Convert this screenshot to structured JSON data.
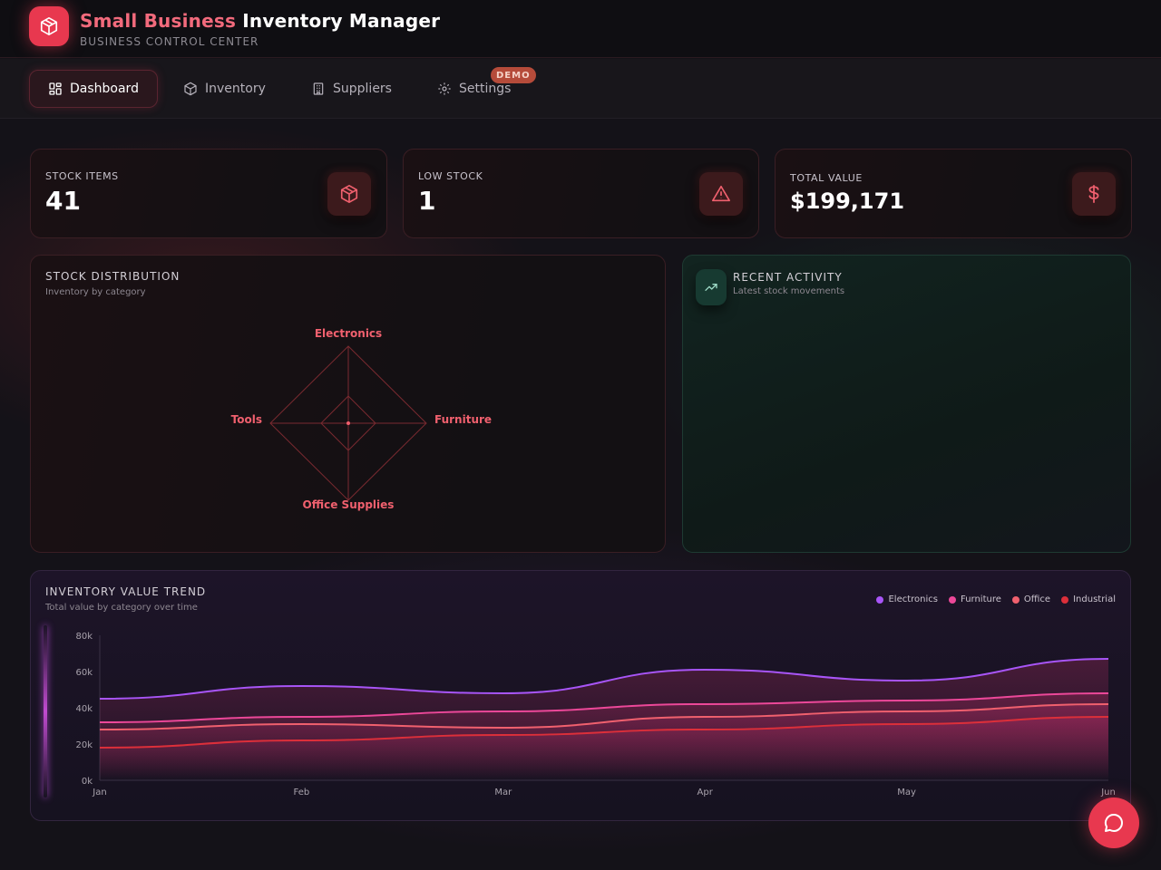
{
  "app": {
    "title_accent": "Small Business",
    "title_rest": "Inventory Manager",
    "subtitle": "BUSINESS CONTROL CENTER",
    "logo_icon": "package-icon"
  },
  "nav": {
    "items": [
      {
        "label": "Dashboard",
        "icon": "dashboard-icon",
        "active": true
      },
      {
        "label": "Inventory",
        "icon": "package-icon",
        "active": false
      },
      {
        "label": "Suppliers",
        "icon": "building-icon",
        "active": false
      },
      {
        "label": "Settings",
        "icon": "gear-icon",
        "active": false
      }
    ],
    "demo_badge": "DEMO"
  },
  "stats": [
    {
      "label": "STOCK ITEMS",
      "value": "41",
      "icon": "package-icon"
    },
    {
      "label": "LOW STOCK",
      "value": "1",
      "icon": "warning-icon"
    },
    {
      "label": "TOTAL VALUE",
      "value": "$199,171",
      "icon": "dollar-icon"
    }
  ],
  "distribution": {
    "title": "STOCK DISTRIBUTION",
    "subtitle": "Inventory by category",
    "axes": [
      "Electronics",
      "Furniture",
      "Office Supplies",
      "Tools"
    ]
  },
  "activity": {
    "title": "RECENT ACTIVITY",
    "subtitle": "Latest stock movements",
    "icon": "trend-up-icon"
  },
  "trend": {
    "title": "INVENTORY VALUE TREND",
    "subtitle": "Total value by category over time"
  },
  "chart_data": {
    "type": "line",
    "title": "INVENTORY VALUE TREND",
    "subtitle": "Total value by category over time",
    "x": [
      "Jan",
      "Feb",
      "Mar",
      "Apr",
      "May",
      "Jun"
    ],
    "y_ticks": [
      "0k",
      "20k",
      "40k",
      "60k",
      "80k"
    ],
    "ylim": [
      0,
      80000
    ],
    "legend_position": "top-right",
    "series": [
      {
        "name": "Electronics",
        "color": "#a855f7",
        "values": [
          45000,
          52000,
          48000,
          61000,
          55000,
          67000
        ]
      },
      {
        "name": "Furniture",
        "color": "#ec4899",
        "values": [
          32000,
          35000,
          38000,
          42000,
          44000,
          48000
        ]
      },
      {
        "name": "Office",
        "color": "#f0606e",
        "values": [
          28000,
          31000,
          29000,
          35000,
          38000,
          42000
        ]
      },
      {
        "name": "Industrial",
        "color": "#dc2f3a",
        "values": [
          18000,
          22000,
          25000,
          28000,
          31000,
          35000
        ]
      }
    ]
  },
  "chat": {
    "icon": "chat-bubble-icon"
  }
}
